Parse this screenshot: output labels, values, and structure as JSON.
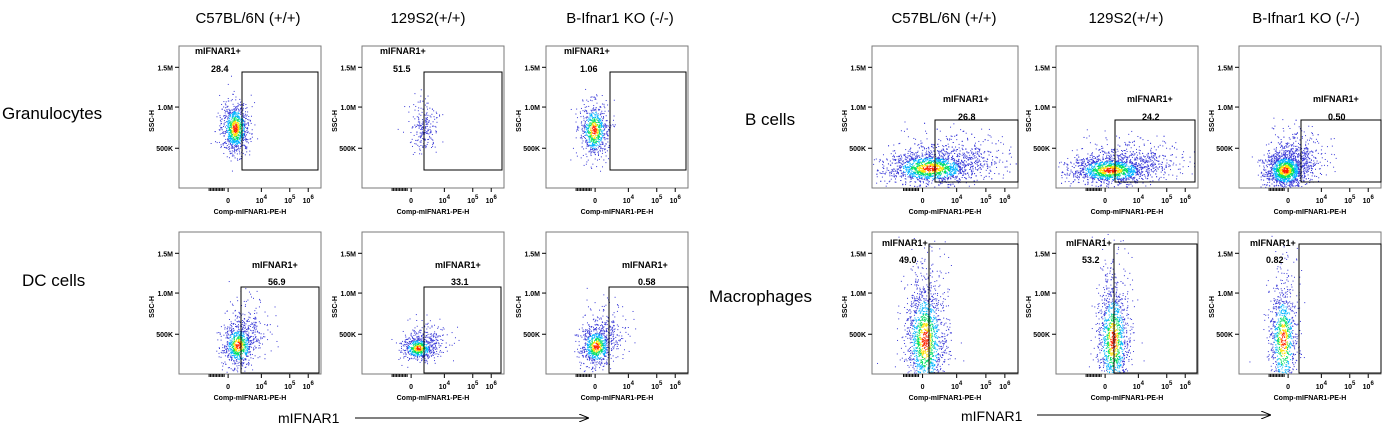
{
  "column_titles": [
    "C57BL/6N (+/+)",
    "129S2(+/+)",
    "B-Ifnar1 KO (-/-)"
  ],
  "row_labels": {
    "granulocytes": "Granulocytes",
    "dc_cells": "DC cells",
    "b_cells": "B cells",
    "macrophages": "Macrophages"
  },
  "x_axis_title": "mIFNAR1",
  "panel_axis": {
    "ylabel": "SSC-H",
    "xlabel": "Comp-mIFNAR1-PE-H",
    "yticks": [
      "500K",
      "1.0M",
      "1.5M"
    ],
    "xticks": [
      "0",
      "10",
      "10",
      "10"
    ],
    "xtick_exponents": [
      "",
      "4",
      "5",
      "6"
    ]
  },
  "gate_label": "mIFNAR1+",
  "colors": {
    "dot": "#3a3ad8",
    "density_low": "#00b4ff",
    "density_mid": "#00e060",
    "density_high": "#ffe000",
    "density_peak": "#ff2000",
    "gate": "#000000"
  },
  "chart_data": [
    {
      "type": "scatter",
      "population": "Granulocytes",
      "strain": "C57BL/6N (+/+)",
      "gate": "mIFNAR1+",
      "percent_positive": "28.4"
    },
    {
      "type": "scatter",
      "population": "Granulocytes",
      "strain": "129S2(+/+)",
      "gate": "mIFNAR1+",
      "percent_positive": "51.5"
    },
    {
      "type": "scatter",
      "population": "Granulocytes",
      "strain": "B-Ifnar1 KO (-/-)",
      "gate": "mIFNAR1+",
      "percent_positive": "1.06"
    },
    {
      "type": "scatter",
      "population": "DC cells",
      "strain": "C57BL/6N (+/+)",
      "gate": "mIFNAR1+",
      "percent_positive": "56.9"
    },
    {
      "type": "scatter",
      "population": "DC cells",
      "strain": "129S2(+/+)",
      "gate": "mIFNAR1+",
      "percent_positive": "33.1"
    },
    {
      "type": "scatter",
      "population": "DC cells",
      "strain": "B-Ifnar1 KO (-/-)",
      "gate": "mIFNAR1+",
      "percent_positive": "0.58"
    },
    {
      "type": "scatter",
      "population": "B cells",
      "strain": "C57BL/6N (+/+)",
      "gate": "mIFNAR1+",
      "percent_positive": "26.8"
    },
    {
      "type": "scatter",
      "population": "B cells",
      "strain": "129S2(+/+)",
      "gate": "mIFNAR1+",
      "percent_positive": "24.2"
    },
    {
      "type": "scatter",
      "population": "B cells",
      "strain": "B-Ifnar1 KO (-/-)",
      "gate": "mIFNAR1+",
      "percent_positive": "0.50"
    },
    {
      "type": "scatter",
      "population": "Macrophages",
      "strain": "C57BL/6N (+/+)",
      "gate": "mIFNAR1+",
      "percent_positive": "49.0"
    },
    {
      "type": "scatter",
      "population": "Macrophages",
      "strain": "129S2(+/+)",
      "gate": "mIFNAR1+",
      "percent_positive": "53.2"
    },
    {
      "type": "scatter",
      "population": "Macrophages",
      "strain": "B-Ifnar1 KO (-/-)",
      "gate": "mIFNAR1+",
      "percent_positive": "0.82"
    }
  ]
}
